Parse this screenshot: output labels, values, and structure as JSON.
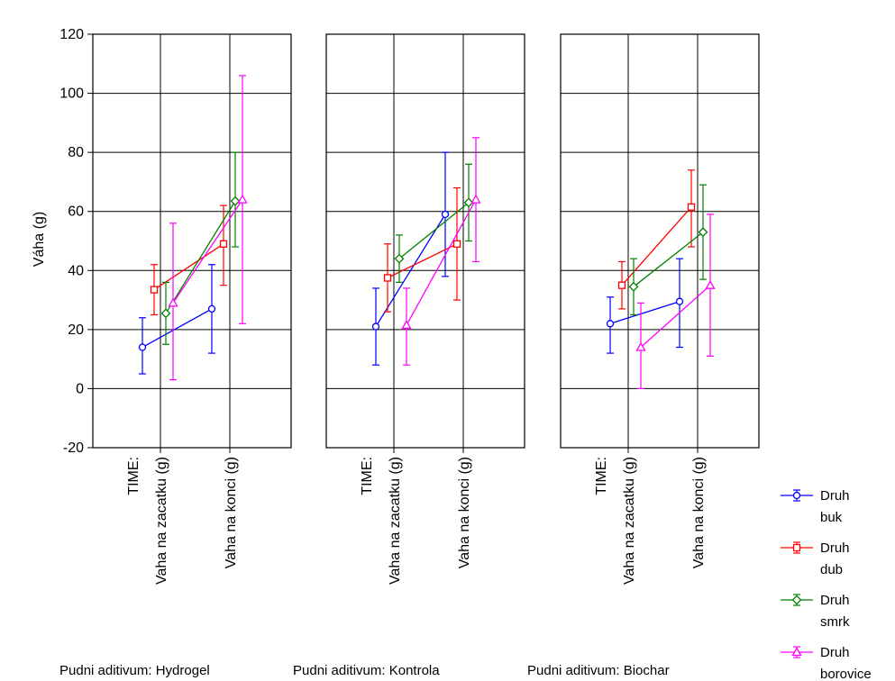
{
  "chart_data": {
    "type": "line",
    "ylabel": "Váha (g)",
    "ylim": [
      -20,
      120
    ],
    "yticks": [
      -20,
      0,
      20,
      40,
      60,
      80,
      100,
      120
    ],
    "grid": true,
    "x_factor_label": "TIME:",
    "categories": [
      "Vaha na zacatku (g)",
      "Vaha na konci (g)"
    ],
    "legend_placement": "bottom-right",
    "colors": {
      "buk": "#0000ff",
      "dub": "#ff0000",
      "smrk": "#008000",
      "borovice": "#ff00ff"
    },
    "panels": [
      {
        "title": "Pudni aditivum: Hydrogel",
        "series": [
          {
            "name": "Druh buk",
            "marker": "circle",
            "values": [
              14,
              27
            ],
            "lower": [
              5,
              12
            ],
            "upper": [
              24,
              42
            ]
          },
          {
            "name": "Druh dub",
            "marker": "square",
            "values": [
              33.5,
              49
            ],
            "lower": [
              25,
              35
            ],
            "upper": [
              42,
              62
            ]
          },
          {
            "name": "Druh smrk",
            "marker": "diamond",
            "values": [
              25.5,
              63.5
            ],
            "lower": [
              15,
              48
            ],
            "upper": [
              36,
              80
            ]
          },
          {
            "name": "Druh borovice",
            "marker": "triangle",
            "values": [
              29,
              64
            ],
            "lower": [
              3,
              22
            ],
            "upper": [
              56,
              106
            ]
          }
        ]
      },
      {
        "title": "Pudni aditivum: Kontrola",
        "series": [
          {
            "name": "Druh buk",
            "marker": "circle",
            "values": [
              21,
              59
            ],
            "lower": [
              8,
              38
            ],
            "upper": [
              34,
              80
            ]
          },
          {
            "name": "Druh dub",
            "marker": "square",
            "values": [
              37.5,
              49
            ],
            "lower": [
              26,
              30
            ],
            "upper": [
              49,
              68
            ]
          },
          {
            "name": "Druh smrk",
            "marker": "diamond",
            "values": [
              44,
              63
            ],
            "lower": [
              36,
              50
            ],
            "upper": [
              52,
              76
            ]
          },
          {
            "name": "Druh borovice",
            "marker": "triangle",
            "values": [
              21.5,
              64
            ],
            "lower": [
              8,
              43
            ],
            "upper": [
              34,
              85
            ]
          }
        ]
      },
      {
        "title": "Pudni aditivum: Biochar",
        "series": [
          {
            "name": "Druh buk",
            "marker": "circle",
            "values": [
              22,
              29.5
            ],
            "lower": [
              12,
              14
            ],
            "upper": [
              31,
              44
            ]
          },
          {
            "name": "Druh dub",
            "marker": "square",
            "values": [
              35,
              61.5
            ],
            "lower": [
              27,
              48
            ],
            "upper": [
              43,
              74
            ]
          },
          {
            "name": "Druh smrk",
            "marker": "diamond",
            "values": [
              34.5,
              53
            ],
            "lower": [
              25,
              37
            ],
            "upper": [
              44,
              69
            ]
          },
          {
            "name": "Druh borovice",
            "marker": "triangle",
            "values": [
              14,
              35
            ],
            "lower": [
              0,
              11
            ],
            "upper": [
              29,
              59
            ]
          }
        ]
      }
    ],
    "legend": [
      {
        "name": "Druh buk",
        "line1": "Druh",
        "line2": "buk",
        "marker": "circle",
        "color": "#0000ff"
      },
      {
        "name": "Druh dub",
        "line1": "Druh",
        "line2": "dub",
        "marker": "square",
        "color": "#ff0000"
      },
      {
        "name": "Druh smrk",
        "line1": "Druh",
        "line2": "smrk",
        "marker": "diamond",
        "color": "#008000"
      },
      {
        "name": "Druh borovice",
        "line1": "Druh",
        "line2": "borovice",
        "marker": "triangle",
        "color": "#ff00ff"
      }
    ]
  }
}
